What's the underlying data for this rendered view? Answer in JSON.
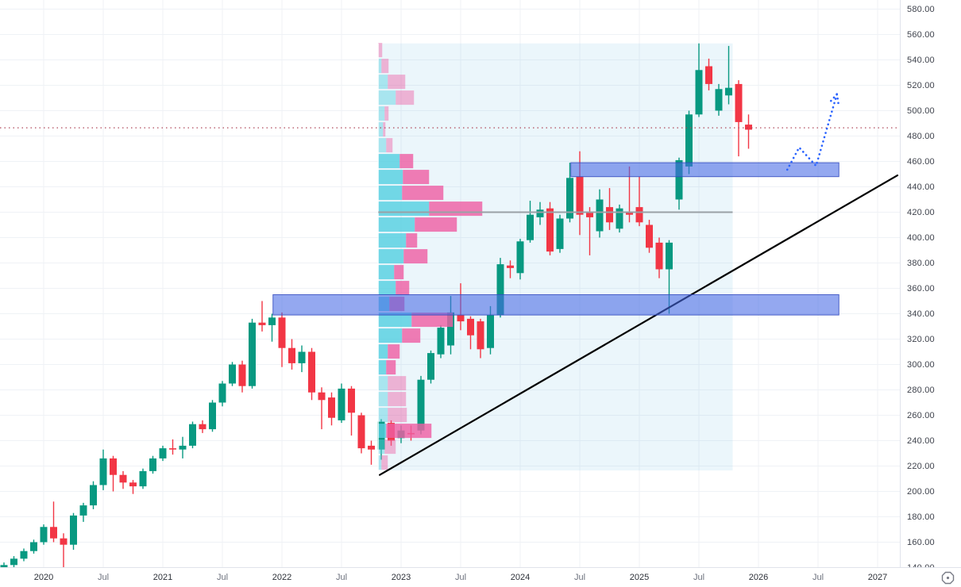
{
  "app": {
    "kind": "candlestick-price-chart",
    "visible_ui": "chart pane with right price scale and bottom time scale"
  },
  "chart_data": {
    "type": "candlestick",
    "timeframe_hint": "monthly candles",
    "grid": true,
    "legend_position": "none",
    "price_axis": {
      "min": 140,
      "max": 580,
      "step": 20,
      "labels": [
        "580.00",
        "560.00",
        "540.00",
        "520.00",
        "500.00",
        "480.00",
        "460.00",
        "440.00",
        "420.00",
        "400.00",
        "380.00",
        "360.00",
        "340.00",
        "320.00",
        "300.00",
        "280.00",
        "260.00",
        "240.00",
        "220.00",
        "200.00",
        "180.00",
        "160.00",
        "140.00"
      ]
    },
    "time_axis": {
      "labels": [
        {
          "text": "2020",
          "month": "2020-01",
          "minor": false
        },
        {
          "text": "Jul",
          "month": "2020-07",
          "minor": true
        },
        {
          "text": "2021",
          "month": "2021-01",
          "minor": false
        },
        {
          "text": "Jul",
          "month": "2021-07",
          "minor": true
        },
        {
          "text": "2022",
          "month": "2022-01",
          "minor": false
        },
        {
          "text": "Jul",
          "month": "2022-07",
          "minor": true
        },
        {
          "text": "2023",
          "month": "2023-01",
          "minor": false
        },
        {
          "text": "Jul",
          "month": "2023-07",
          "minor": true
        },
        {
          "text": "2024",
          "month": "2024-01",
          "minor": false
        },
        {
          "text": "Jul",
          "month": "2024-07",
          "minor": true
        },
        {
          "text": "2025",
          "month": "2025-01",
          "minor": false
        },
        {
          "text": "Jul",
          "month": "2025-07",
          "minor": true
        },
        {
          "text": "2026",
          "month": "2026-01",
          "minor": false
        },
        {
          "text": "Jul",
          "month": "2026-07",
          "minor": true
        },
        {
          "text": "2027",
          "month": "2027-01",
          "minor": false
        }
      ]
    },
    "candles": [
      [
        "2019-09",
        140,
        144,
        137,
        142
      ],
      [
        "2019-10",
        142,
        149,
        140,
        147
      ],
      [
        "2019-11",
        147,
        155,
        145,
        153
      ],
      [
        "2019-12",
        153,
        162,
        151,
        160
      ],
      [
        "2020-01",
        160,
        174,
        158,
        172
      ],
      [
        "2020-02",
        172,
        192,
        160,
        163
      ],
      [
        "2020-03",
        163,
        167,
        140,
        158
      ],
      [
        "2020-04",
        158,
        183,
        154,
        181
      ],
      [
        "2020-05",
        181,
        191,
        176,
        189
      ],
      [
        "2020-06",
        189,
        208,
        186,
        205
      ],
      [
        "2020-07",
        205,
        233,
        201,
        226
      ],
      [
        "2020-08",
        226,
        228,
        200,
        213
      ],
      [
        "2020-09",
        213,
        216,
        202,
        207
      ],
      [
        "2020-10",
        207,
        209,
        198,
        204
      ],
      [
        "2020-11",
        204,
        218,
        202,
        216
      ],
      [
        "2020-12",
        216,
        228,
        214,
        226
      ],
      [
        "2021-01",
        226,
        236,
        224,
        234
      ],
      [
        "2021-02",
        234,
        241,
        229,
        233
      ],
      [
        "2021-03",
        233,
        243,
        226,
        236
      ],
      [
        "2021-04",
        236,
        255,
        234,
        253
      ],
      [
        "2021-05",
        253,
        256,
        246,
        249
      ],
      [
        "2021-06",
        249,
        272,
        247,
        270
      ],
      [
        "2021-07",
        270,
        287,
        267,
        285
      ],
      [
        "2021-08",
        285,
        302,
        283,
        300
      ],
      [
        "2021-09",
        300,
        303,
        278,
        283
      ],
      [
        "2021-10",
        283,
        336,
        281,
        333
      ],
      [
        "2021-11",
        333,
        350,
        326,
        331
      ],
      [
        "2021-12",
        331,
        340,
        318,
        337
      ],
      [
        "2022-01",
        337,
        341,
        298,
        313
      ],
      [
        "2022-02",
        313,
        320,
        296,
        301
      ],
      [
        "2022-03",
        301,
        315,
        294,
        310
      ],
      [
        "2022-04",
        310,
        313,
        272,
        278
      ],
      [
        "2022-05",
        278,
        282,
        249,
        272
      ],
      [
        "2022-06",
        274,
        278,
        252,
        258
      ],
      [
        "2022-07",
        256,
        285,
        254,
        281
      ],
      [
        "2022-08",
        281,
        283,
        244,
        262
      ],
      [
        "2022-09",
        260,
        262,
        230,
        234
      ],
      [
        "2022-10",
        236,
        240,
        221,
        233
      ],
      [
        "2022-11",
        233,
        257,
        225,
        255
      ],
      [
        "2022-12",
        254,
        256,
        236,
        240
      ],
      [
        "2023-01",
        242,
        252,
        238,
        248
      ],
      [
        "2023-02",
        246,
        252,
        240,
        245
      ],
      [
        "2023-03",
        248,
        291,
        245,
        288
      ],
      [
        "2023-04",
        288,
        311,
        285,
        309
      ],
      [
        "2023-05",
        308,
        331,
        305,
        329
      ],
      [
        "2023-06",
        315,
        354,
        308,
        341
      ],
      [
        "2023-07",
        339,
        364,
        327,
        334
      ],
      [
        "2023-08",
        336,
        338,
        312,
        323
      ],
      [
        "2023-09",
        334,
        336,
        305,
        312
      ],
      [
        "2023-10",
        313,
        346,
        308,
        339
      ],
      [
        "2023-11",
        339,
        384,
        337,
        379
      ],
      [
        "2023-12",
        378,
        382,
        368,
        376
      ],
      [
        "2024-01",
        372,
        399,
        367,
        397
      ],
      [
        "2024-02",
        398,
        429,
        396,
        418
      ],
      [
        "2024-03",
        416,
        428,
        410,
        422
      ],
      [
        "2024-04",
        423,
        428,
        386,
        389
      ],
      [
        "2024-05",
        391,
        418,
        388,
        415
      ],
      [
        "2024-06",
        415,
        459,
        412,
        447
      ],
      [
        "2024-07",
        448,
        468,
        402,
        418
      ],
      [
        "2024-08",
        420,
        424,
        386,
        416
      ],
      [
        "2024-09",
        405,
        438,
        400,
        430
      ],
      [
        "2024-10",
        424,
        439,
        406,
        412
      ],
      [
        "2024-11",
        407,
        426,
        404,
        423
      ],
      [
        "2024-12",
        420,
        456,
        412,
        418
      ],
      [
        "2025-01",
        424,
        448,
        409,
        412
      ],
      [
        "2025-02",
        410,
        414,
        388,
        392
      ],
      [
        "2025-03",
        396,
        400,
        368,
        375
      ],
      [
        "2025-04",
        375,
        398,
        340,
        396
      ],
      [
        "2025-05",
        430,
        463,
        422,
        461
      ],
      [
        "2025-06",
        456,
        500,
        450,
        497
      ],
      [
        "2025-07",
        497,
        553,
        495,
        532
      ],
      [
        "2025-08",
        535,
        541,
        516,
        521
      ],
      [
        "2025-09",
        500,
        521,
        496,
        517
      ],
      [
        "2025-10",
        512,
        551,
        505,
        518
      ],
      [
        "2025-11",
        521,
        524,
        464,
        491
      ],
      [
        "2025-12",
        489,
        497,
        470,
        485
      ]
    ],
    "volume_profile": {
      "description": "fixed-range volume profile anchored at the 2022 low, buy volume (cyan) left, sell volume (pink) right",
      "anchor_t": 37.7,
      "range_end_t": 73.4,
      "range_price_top": 553,
      "range_price_bottom": 216.5,
      "row_height_price": 12.5,
      "rows": [
        {
          "price_top": 554,
          "buy": 0,
          "sell": 5,
          "faded": true
        },
        {
          "price_top": 541.5,
          "buy": 4,
          "sell": 9,
          "faded": true
        },
        {
          "price_top": 529,
          "buy": 12,
          "sell": 22,
          "faded": true
        },
        {
          "price_top": 516.5,
          "buy": 22,
          "sell": 23,
          "faded": true
        },
        {
          "price_top": 504,
          "buy": 8,
          "sell": 5,
          "faded": true
        },
        {
          "price_top": 491.5,
          "buy": 6,
          "sell": 3,
          "faded": true
        },
        {
          "price_top": 479,
          "buy": 10,
          "sell": 8,
          "faded": true
        },
        {
          "price_top": 466.5,
          "buy": 27,
          "sell": 17,
          "faded": false
        },
        {
          "price_top": 454,
          "buy": 31,
          "sell": 33,
          "faded": false
        },
        {
          "price_top": 441.5,
          "buy": 30,
          "sell": 52,
          "faded": false
        },
        {
          "price_top": 429,
          "buy": 64,
          "sell": 67,
          "faded": false
        },
        {
          "price_top": 416.5,
          "buy": 46,
          "sell": 53,
          "faded": false
        },
        {
          "price_top": 404,
          "buy": 35,
          "sell": 14,
          "faded": false
        },
        {
          "price_top": 391.5,
          "buy": 32,
          "sell": 30,
          "faded": false
        },
        {
          "price_top": 379,
          "buy": 20,
          "sell": 12,
          "faded": false
        },
        {
          "price_top": 366.5,
          "buy": 22,
          "sell": 17,
          "faded": false
        },
        {
          "price_top": 354,
          "buy": 14,
          "sell": 19,
          "faded": false
        },
        {
          "price_top": 341.5,
          "buy": 42,
          "sell": 52,
          "faded": false
        },
        {
          "price_top": 329,
          "buy": 30,
          "sell": 23,
          "faded": false
        },
        {
          "price_top": 316.5,
          "buy": 12,
          "sell": 15,
          "faded": false
        },
        {
          "price_top": 304,
          "buy": 10,
          "sell": 12,
          "faded": false
        },
        {
          "price_top": 291.5,
          "buy": 12,
          "sell": 23,
          "faded": true
        },
        {
          "price_top": 279,
          "buy": 12,
          "sell": 23,
          "faded": true
        },
        {
          "price_top": 266.5,
          "buy": 12,
          "sell": 24,
          "faded": true
        },
        {
          "price_top": 254,
          "buy": 10,
          "sell": 57,
          "faded": false
        },
        {
          "price_top": 241.5,
          "buy": 8,
          "sell": 14,
          "faded": true
        },
        {
          "price_top": 229,
          "buy": 4,
          "sell": 8,
          "faded": true
        }
      ],
      "poc_line": {
        "price": 420,
        "t_start": 37.7,
        "t_end": 73.4
      }
    },
    "zones": [
      {
        "name": "demand-zone",
        "price_top": 355,
        "price_bottom": 339,
        "t_start": 27.1,
        "t_end": 84.1
      },
      {
        "name": "supply-zone",
        "price_top": 459,
        "price_bottom": 448,
        "t_start": 57.1,
        "t_end": 84.1
      }
    ],
    "trendline": {
      "t_start": 37.85,
      "price_start": 213,
      "t_end": 90.0,
      "price_end": 449
    },
    "last_price_line": {
      "price": 486.5
    },
    "projection_arrow": {
      "points_t_price": [
        [
          78.9,
          453.5
        ],
        [
          80.1,
          471
        ],
        [
          81.8,
          456.5
        ],
        [
          83.9,
          513
        ]
      ],
      "style": "dotted"
    },
    "colors": {
      "up": "#089981",
      "down": "#f23645",
      "grid": "#eff2f6",
      "axis_text": "#3e424c",
      "profile_buy": "#56d0e0",
      "profile_sell": "#ee5fa4",
      "profile_backdrop": "rgba(103,189,224,0.13)",
      "zone_fill": "rgba(70,105,230,0.58)",
      "zone_border": "rgba(52,75,190,0.85)",
      "poc_line": "#9aa0a6",
      "trendline": "#000000",
      "last_price_dotted": "#b0485a",
      "arrow_blue": "#2962ff"
    },
    "icons": {
      "bottom_right_logo": "octagon-with-dot"
    }
  }
}
